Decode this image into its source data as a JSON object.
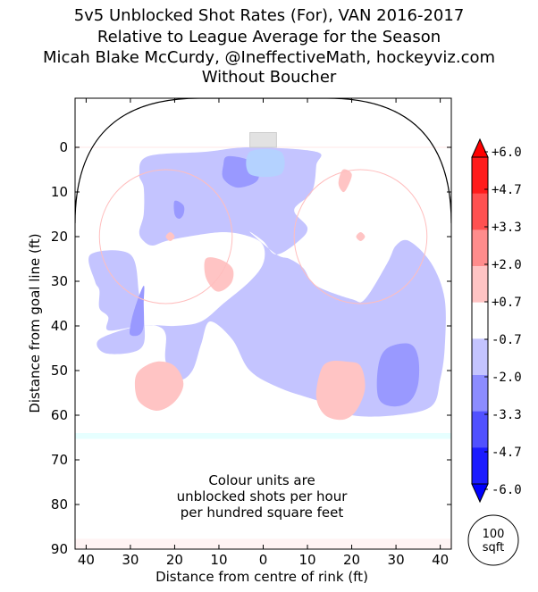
{
  "title_lines": [
    "5v5 Unblocked Shot Rates (For), VAN 2016-2017",
    "Relative to League Average for the Season",
    "Micah Blake McCurdy, @IneffectiveMath, hockeyviz.com",
    "Without Boucher"
  ],
  "annotation_lines": [
    "Colour units are",
    "unblocked shots per hour",
    "per hundred square feet"
  ],
  "area_badge": {
    "value": "100",
    "unit": "sqft"
  },
  "colors": {
    "strong_blue": "#5b5bff",
    "mid_blue": "#9999ff",
    "light_blue": "#c4c4ff",
    "light_red": "#ffc4c4",
    "mid_red": "#ff8c8c",
    "strong_red": "#ff3d3d",
    "zone_line": "#fff3f3",
    "blue_line": "#e6ffff",
    "crease": "#b4d2ff",
    "circle": "#ffbebe"
  },
  "chart_data": {
    "type": "heatmap",
    "xlabel": "Distance from centre of rink (ft)",
    "ylabel": "Distance from goal line (ft)",
    "xlim": [
      42.5,
      -42.5
    ],
    "ylim": [
      90,
      -11
    ],
    "x_ticks": [
      "40",
      "30",
      "20",
      "10",
      "0",
      "10",
      "20",
      "30",
      "40"
    ],
    "y_ticks": [
      "0",
      "10",
      "20",
      "30",
      "40",
      "50",
      "60",
      "70",
      "80",
      "90"
    ],
    "colorbar": {
      "labels": [
        "+6.0",
        "+4.7",
        "+3.3",
        "+2.0",
        "+0.7",
        "-0.7",
        "-2.0",
        "-3.3",
        "-4.7",
        "-6.0"
      ],
      "range": [
        -6.0,
        6.0
      ]
    },
    "regions": [
      {
        "level": "light_blue",
        "range": "-2.0 to -0.7",
        "outline": [
          [
            26,
            2
          ],
          [
            13,
            1
          ],
          [
            3,
            0
          ],
          [
            -12,
            1
          ],
          [
            -12,
            4
          ],
          [
            -11,
            10
          ],
          [
            -7,
            14
          ],
          [
            -10,
            18
          ],
          [
            -8,
            21
          ],
          [
            -3,
            24
          ],
          [
            0,
            21
          ],
          [
            3,
            19
          ],
          [
            -3,
            24
          ],
          [
            -6,
            25
          ],
          [
            -9,
            27
          ],
          [
            -12,
            31
          ],
          [
            -20,
            34
          ],
          [
            -23,
            34
          ],
          [
            -28,
            26
          ],
          [
            -30,
            22
          ],
          [
            -33,
            21
          ],
          [
            -38,
            26
          ],
          [
            -41,
            34
          ],
          [
            -41,
            45
          ],
          [
            -40,
            52
          ],
          [
            -38,
            58
          ],
          [
            -30,
            60
          ],
          [
            -20,
            60
          ],
          [
            -13,
            57
          ],
          [
            -4,
            54
          ],
          [
            3,
            50
          ],
          [
            7,
            43
          ],
          [
            12,
            39
          ],
          [
            14,
            44
          ],
          [
            16,
            50
          ],
          [
            19,
            52
          ],
          [
            22,
            48
          ],
          [
            22,
            42
          ],
          [
            24,
            40
          ],
          [
            28,
            40
          ],
          [
            35,
            41
          ],
          [
            35,
            38
          ],
          [
            37,
            36
          ],
          [
            37,
            32
          ],
          [
            38,
            30
          ],
          [
            39,
            24
          ],
          [
            30,
            24
          ],
          [
            28,
            33
          ],
          [
            27,
            38
          ],
          [
            27,
            44
          ],
          [
            30,
            46
          ],
          [
            36,
            46
          ],
          [
            37,
            43
          ],
          [
            28,
            40
          ],
          [
            20,
            40
          ],
          [
            14,
            39
          ],
          [
            9,
            35
          ],
          [
            3,
            30
          ],
          [
            0,
            26
          ],
          [
            0,
            22
          ],
          [
            3,
            20
          ],
          [
            9,
            19
          ],
          [
            17,
            20
          ],
          [
            22,
            21
          ],
          [
            25,
            22
          ],
          [
            27,
            21
          ],
          [
            28,
            19
          ],
          [
            27,
            15
          ],
          [
            27,
            9
          ],
          [
            28,
            6
          ]
        ]
      },
      {
        "level": "mid_blue",
        "range": "-3.3 to -2.0",
        "outline": [
          [
            8,
            2
          ],
          [
            3,
            3
          ],
          [
            1,
            6
          ],
          [
            2,
            8
          ],
          [
            6,
            9
          ],
          [
            9,
            7
          ],
          [
            9,
            4
          ]
        ]
      },
      {
        "level": "mid_blue",
        "range": "-3.3 to -2.0",
        "outline": [
          [
            20,
            12
          ],
          [
            18,
            13
          ],
          [
            18,
            15
          ],
          [
            19,
            16
          ],
          [
            20,
            15
          ]
        ]
      },
      {
        "level": "mid_blue",
        "range": "-3.3 to -2.0",
        "outline": [
          [
            27,
            31
          ],
          [
            29,
            36
          ],
          [
            30,
            40
          ],
          [
            30,
            42
          ],
          [
            28,
            42
          ],
          [
            27,
            40
          ],
          [
            27,
            35
          ]
        ]
      },
      {
        "level": "mid_blue",
        "range": "-3.3 to -2.0",
        "outline": [
          [
            -33,
            44
          ],
          [
            -28,
            45
          ],
          [
            -26,
            49
          ],
          [
            -26,
            56
          ],
          [
            -29,
            58
          ],
          [
            -33,
            57
          ],
          [
            -35,
            53
          ],
          [
            -35,
            47
          ]
        ]
      },
      {
        "level": "crease_blue",
        "range": "-2.0 to -0.7",
        "outline": [
          [
            -4,
            1
          ],
          [
            3,
            1
          ],
          [
            3,
            6
          ],
          [
            -4,
            6
          ]
        ]
      },
      {
        "level": "light_red",
        "range": "+0.7 to +2.0",
        "outline": [
          [
            13,
            25
          ],
          [
            10,
            25
          ],
          [
            7,
            27
          ],
          [
            7,
            30
          ],
          [
            9,
            32
          ],
          [
            11,
            32
          ],
          [
            13,
            29
          ]
        ]
      },
      {
        "level": "light_red",
        "range": "+0.7 to +2.0",
        "outline": [
          [
            -18,
            5
          ],
          [
            -20,
            6
          ],
          [
            -19,
            9
          ],
          [
            -18,
            10
          ],
          [
            -17,
            8
          ]
        ]
      },
      {
        "level": "light_red",
        "range": "+0.7 to +2.0",
        "outline": [
          [
            -22,
            19
          ],
          [
            -21,
            20
          ],
          [
            -22,
            21
          ],
          [
            -23,
            20
          ]
        ]
      },
      {
        "level": "light_red",
        "range": "+0.7 to +2.0",
        "outline": [
          [
            21,
            19
          ],
          [
            20,
            20
          ],
          [
            21,
            21
          ],
          [
            22,
            20
          ]
        ]
      },
      {
        "level": "light_red",
        "range": "+0.7 to +2.0",
        "outline": [
          [
            24,
            48
          ],
          [
            20,
            49
          ],
          [
            18,
            53
          ],
          [
            20,
            57
          ],
          [
            24,
            59
          ],
          [
            28,
            57
          ],
          [
            29,
            53
          ],
          [
            28,
            50
          ]
        ]
      },
      {
        "level": "light_red",
        "range": "+0.7 to +2.0",
        "outline": [
          [
            -19,
            48
          ],
          [
            -22,
            49
          ],
          [
            -23,
            54
          ],
          [
            -21,
            59
          ],
          [
            -18,
            61
          ],
          [
            -14,
            60
          ],
          [
            -12,
            56
          ],
          [
            -13,
            50
          ],
          [
            -15,
            48
          ]
        ]
      }
    ]
  }
}
